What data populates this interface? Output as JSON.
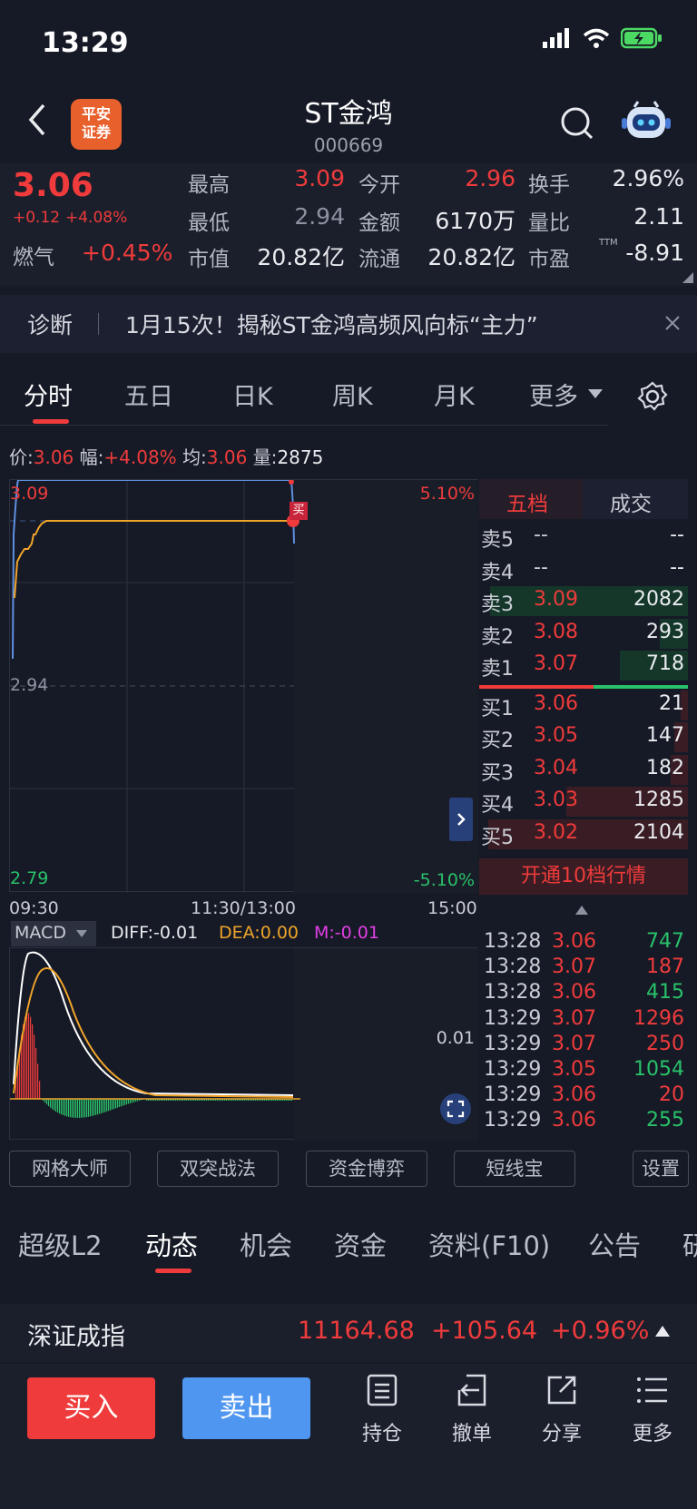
{
  "status_bar": {
    "time": "13:29"
  },
  "header": {
    "broker_logo": "平安\n证券",
    "broker_logo_line1": "平安",
    "broker_logo_line2": "证券",
    "stock_name": "ST金鸿",
    "stock_code": "000669"
  },
  "quote": {
    "price": "3.06",
    "change": "+0.12",
    "change_pct": "+4.08%",
    "sector_name": "燃气",
    "sector_pct": "+0.45%",
    "high_label": "最高",
    "high": "3.09",
    "low_label": "最低",
    "low": "2.94",
    "mktcap_label": "市值",
    "mktcap": "20.82亿",
    "open_label": "今开",
    "open": "2.96",
    "amount_label": "金额",
    "amount": "6170万",
    "float_label": "流通",
    "float": "20.82亿",
    "turnover_label": "换手",
    "turnover": "2.96%",
    "volratio_label": "量比",
    "volratio": "2.11",
    "pe_label": "市盈",
    "pe_sup": "TTM",
    "pe": "-8.91"
  },
  "diagnosis": {
    "label": "诊断",
    "text": "1月15次！揭秘ST金鸿高频风向标“主力”"
  },
  "chart_tabs": [
    "分时",
    "五日",
    "日K",
    "周K",
    "月K",
    "更多"
  ],
  "chart_info": {
    "price_label": "价:",
    "price": "3.06",
    "range_label": "幅:",
    "range": "+4.08%",
    "avg_label": "均:",
    "avg": "3.06",
    "vol_label": "量:",
    "vol": "2875"
  },
  "chart_axis": {
    "top_price": "3.09",
    "mid_price": "2.94",
    "bottom_price": "2.79",
    "top_pct": "5.10%",
    "bottom_pct": "-5.10%",
    "t_start": "09:30",
    "t_mid": "11:30/13:00",
    "t_end": "15:00",
    "buy_marker": "买"
  },
  "macd": {
    "selector": "MACD",
    "diff": "DIFF:-0.01",
    "dea": "DEA:0.00",
    "m": "M:-0.01",
    "axis_label": "0.01"
  },
  "order_book": {
    "tab_five": "五档",
    "tab_trades": "成交",
    "asks": [
      {
        "label": "卖5",
        "price": "--",
        "vol": "--"
      },
      {
        "label": "卖4",
        "price": "--",
        "vol": "--"
      },
      {
        "label": "卖3",
        "price": "3.09",
        "vol": "2082"
      },
      {
        "label": "卖2",
        "price": "3.08",
        "vol": "293"
      },
      {
        "label": "卖1",
        "price": "3.07",
        "vol": "718"
      }
    ],
    "bids": [
      {
        "label": "买1",
        "price": "3.06",
        "vol": "21"
      },
      {
        "label": "买2",
        "price": "3.05",
        "vol": "147"
      },
      {
        "label": "买3",
        "price": "3.04",
        "vol": "182"
      },
      {
        "label": "买4",
        "price": "3.03",
        "vol": "1285"
      },
      {
        "label": "买5",
        "price": "3.02",
        "vol": "2104"
      }
    ],
    "upgrade": "开通10档行情"
  },
  "ticks": [
    {
      "time": "13:28",
      "price": "3.06",
      "vol": "747",
      "side": "green"
    },
    {
      "time": "13:28",
      "price": "3.07",
      "vol": "187",
      "side": "red"
    },
    {
      "time": "13:28",
      "price": "3.06",
      "vol": "415",
      "side": "green"
    },
    {
      "time": "13:29",
      "price": "3.07",
      "vol": "1296",
      "side": "red"
    },
    {
      "time": "13:29",
      "price": "3.07",
      "vol": "250",
      "side": "red"
    },
    {
      "time": "13:29",
      "price": "3.05",
      "vol": "1054",
      "side": "green"
    },
    {
      "time": "13:29",
      "price": "3.06",
      "vol": "20",
      "side": "red"
    },
    {
      "time": "13:29",
      "price": "3.06",
      "vol": "255",
      "side": "green"
    }
  ],
  "tools": [
    "网格大师",
    "双突战法",
    "资金博弈",
    "短线宝",
    "设置"
  ],
  "lower_tabs": [
    "超级L2",
    "动态",
    "机会",
    "资金",
    "资料(F10)",
    "公告",
    "研"
  ],
  "index_bar": {
    "name": "深证成指",
    "value": "11164.68",
    "change": "+105.64",
    "pct": "+0.96%"
  },
  "bottom_bar": {
    "buy": "买入",
    "sell": "卖出",
    "position": "持仓",
    "cancel": "撤单",
    "share": "分享",
    "more": "更多"
  },
  "colors": {
    "up": "#ef3b3b",
    "down": "#29c16a",
    "price_line": "#5f8fe0",
    "avg_line": "#f0a42a",
    "buy_button": "#ef3b3b",
    "sell_button": "#4f96f0"
  }
}
